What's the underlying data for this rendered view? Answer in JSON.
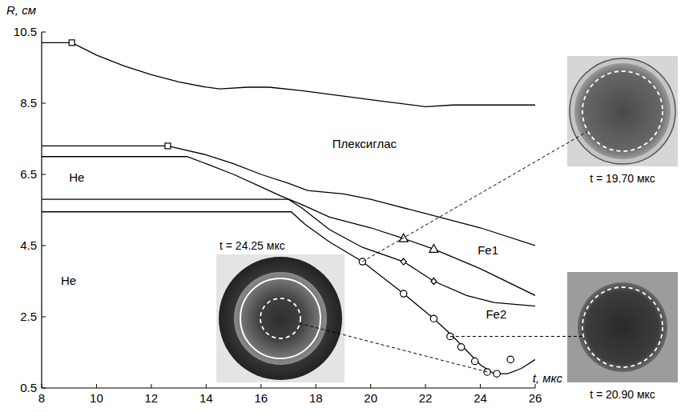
{
  "chart_data": {
    "type": "line",
    "x_label": "t, мкс",
    "y_label": "R, см",
    "xlim": [
      8,
      26
    ],
    "xticks": [
      8,
      10,
      12,
      14,
      16,
      18,
      20,
      22,
      24,
      26
    ],
    "ylim": [
      0.5,
      10.5
    ],
    "yticks": [
      0.5,
      2.5,
      4.5,
      6.5,
      8.5,
      10.5
    ],
    "grid": false,
    "series": [
      {
        "type": "line",
        "color": "#000000",
        "line_style": "solid",
        "x": [
          8,
          9.1,
          10,
          11,
          12,
          13,
          14,
          14.5,
          15.5,
          16.3,
          17.5,
          19,
          20.5,
          22,
          23,
          24,
          26
        ],
        "values": [
          10.2,
          10.2,
          9.85,
          9.55,
          9.3,
          9.1,
          8.95,
          8.9,
          8.95,
          8.95,
          8.85,
          8.7,
          8.55,
          8.4,
          8.45,
          8.45,
          8.45
        ]
      },
      {
        "type": "line",
        "color": "#000000",
        "line_style": "solid",
        "x": [
          8,
          12.6,
          14,
          15,
          16,
          17,
          17.7,
          19,
          20,
          22,
          24,
          26
        ],
        "values": [
          7.3,
          7.3,
          7.05,
          6.8,
          6.5,
          6.25,
          6.05,
          5.95,
          5.8,
          5.4,
          5.0,
          4.5
        ]
      },
      {
        "type": "line",
        "color": "#000000",
        "line_style": "solid",
        "x": [
          8,
          13.3,
          14,
          15,
          16,
          16.7,
          17.5,
          18.5,
          20,
          21.2,
          22.3,
          24,
          26
        ],
        "values": [
          7.0,
          7.0,
          6.8,
          6.5,
          6.15,
          5.9,
          5.65,
          5.3,
          5.0,
          4.7,
          4.4,
          3.85,
          3.1
        ]
      },
      {
        "type": "line",
        "color": "#000000",
        "line_style": "solid",
        "x": [
          8,
          17,
          17.5,
          18.5,
          19.7,
          21.2,
          22.3,
          23.5,
          24.5,
          26
        ],
        "values": [
          5.8,
          5.8,
          5.55,
          4.95,
          4.45,
          4.05,
          3.5,
          3.1,
          2.9,
          2.8
        ]
      },
      {
        "type": "line",
        "color": "#000000",
        "line_style": "solid",
        "x": [
          8,
          17.1,
          17.6,
          18.5,
          19.7,
          21.2,
          22.3,
          23,
          23.5,
          24,
          24.5,
          25,
          25.5,
          26
        ],
        "values": [
          5.45,
          5.45,
          5.1,
          4.6,
          4.05,
          3.15,
          2.45,
          1.95,
          1.55,
          1.15,
          0.9,
          0.9,
          1.05,
          1.3
        ]
      },
      {
        "type": "scatter",
        "marker": "square",
        "color": "#000000",
        "x": [
          9.1,
          12.6
        ],
        "values": [
          10.2,
          7.3
        ]
      },
      {
        "type": "scatter",
        "marker": "triangle",
        "color": "#000000",
        "x": [
          21.2,
          22.3
        ],
        "values": [
          4.7,
          4.4
        ]
      },
      {
        "type": "scatter",
        "marker": "diamond",
        "color": "#000000",
        "x": [
          21.2,
          22.3
        ],
        "values": [
          4.05,
          3.5
        ]
      },
      {
        "type": "scatter",
        "marker": "circle",
        "color": "#000000",
        "x": [
          19.7,
          21.2,
          22.3,
          22.9,
          23.3,
          23.8,
          24.25,
          24.6,
          25.1
        ],
        "values": [
          4.05,
          3.15,
          2.45,
          1.95,
          1.65,
          1.25,
          0.95,
          0.9,
          1.3
        ]
      }
    ],
    "annotations": [
      {
        "text": "Плексиглас",
        "x": 18.6,
        "y": 7.25
      },
      {
        "text": "He",
        "x": 9.0,
        "y": 6.3
      },
      {
        "text": "He",
        "x": 8.7,
        "y": 3.4
      },
      {
        "text": "Fe1",
        "x": 23.9,
        "y": 4.25
      },
      {
        "text": "Fe2",
        "x": 24.2,
        "y": 2.45
      }
    ],
    "insets": [
      {
        "label": "t = 24.25 мкс"
      },
      {
        "label": "t = 19.70 мкс"
      },
      {
        "label": "t = 20.90 мкс"
      }
    ]
  }
}
